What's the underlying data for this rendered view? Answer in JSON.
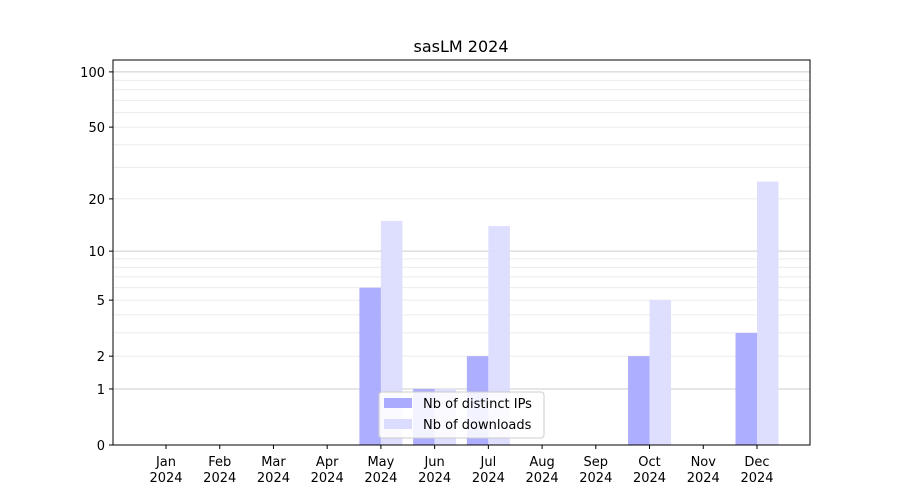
{
  "chart_data": {
    "type": "bar",
    "title": "sasLM 2024",
    "xlabel": "",
    "ylabel": "",
    "y_scale": "log(1+y)",
    "ylim": [
      0,
      116
    ],
    "y_ticks": [
      0,
      1,
      2,
      5,
      10,
      20,
      50,
      100
    ],
    "grid": true,
    "legend_position": "lower-center",
    "categories": [
      "Jan\n2024",
      "Feb\n2024",
      "Mar\n2024",
      "Apr\n2024",
      "May\n2024",
      "Jun\n2024",
      "Jul\n2024",
      "Aug\n2024",
      "Sep\n2024",
      "Oct\n2024",
      "Nov\n2024",
      "Dec\n2024"
    ],
    "series": [
      {
        "name": "Nb of distinct IPs",
        "color": "#aaaaff",
        "values": [
          0,
          0,
          0,
          0,
          6,
          1,
          2,
          0,
          0,
          2,
          0,
          3
        ]
      },
      {
        "name": "Nb of downloads",
        "color": "#dcdcff",
        "values": [
          0,
          0,
          0,
          0,
          15,
          1,
          14,
          0,
          0,
          5,
          0,
          25
        ]
      }
    ]
  }
}
